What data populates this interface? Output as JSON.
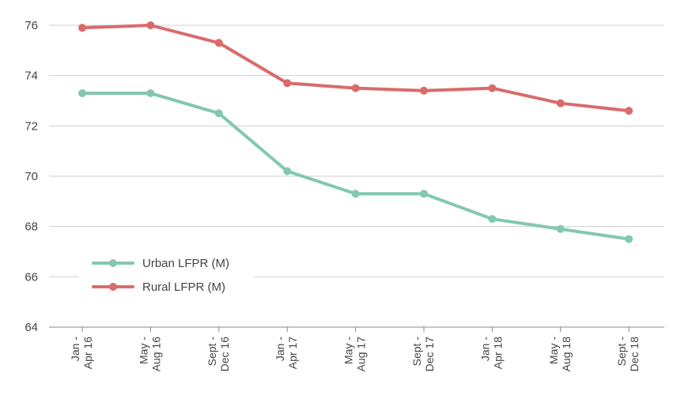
{
  "chart_data": {
    "type": "line",
    "categories": [
      [
        "Jan -",
        "Apr 16"
      ],
      [
        "May -",
        "Aug 16"
      ],
      [
        "Sept -",
        "Dec 16"
      ],
      [
        "Jan -",
        "Apr 17"
      ],
      [
        "May -",
        "Aug 17"
      ],
      [
        "Sept -",
        "Dec 17"
      ],
      [
        "Jan -",
        "Apr 18"
      ],
      [
        "May -",
        "Aug 18"
      ],
      [
        "Sept -",
        "Dec 18"
      ]
    ],
    "series": [
      {
        "name": "Urban LFPR (M)",
        "color": "#82c8b0",
        "values": [
          73.3,
          73.3,
          72.5,
          70.2,
          69.3,
          69.3,
          68.3,
          67.9,
          67.5
        ]
      },
      {
        "name": "Rural LFPR (M)",
        "color": "#d96b6b",
        "values": [
          75.9,
          76.0,
          75.3,
          73.7,
          73.5,
          73.4,
          73.5,
          72.9,
          72.6
        ]
      }
    ],
    "ylim": [
      64,
      76
    ],
    "yticks": [
      "64",
      "66",
      "68",
      "70",
      "72",
      "74",
      "76"
    ],
    "grid": true,
    "legend": "bottom-left"
  }
}
